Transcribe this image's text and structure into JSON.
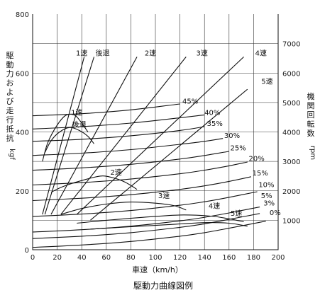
{
  "chart_data": {
    "type": "line",
    "title": "駆動力曲線図例",
    "xlabel": "車速（km/h）",
    "ylabel_left": [
      "駆",
      "動",
      "力",
      "お",
      "よ",
      "び",
      "走",
      "行",
      "抵",
      "抗"
    ],
    "ylabel_left_unit": "kgf",
    "ylabel_right": [
      "機",
      "関",
      "回",
      "転",
      "数"
    ],
    "ylabel_right_unit": "rpm",
    "xlim": [
      0,
      200
    ],
    "ylim_left": [
      0,
      800
    ],
    "ylim_right": [
      0,
      8000
    ],
    "x_ticks": [
      "0",
      "20",
      "40",
      "60",
      "80",
      "100",
      "120",
      "140",
      "160",
      "180",
      "200"
    ],
    "y_left_ticks": [
      "0",
      "200",
      "400",
      "600",
      "800"
    ],
    "y_right_ticks": [
      "1000",
      "2000",
      "3000",
      "4000",
      "5000",
      "6000",
      "7000"
    ],
    "grid": true,
    "gear_speed_lines": [
      {
        "name": "1速",
        "points": [
          [
            8,
            1200
          ],
          [
            42,
            6550
          ]
        ]
      },
      {
        "name": "後退",
        "points": [
          [
            10,
            1200
          ],
          [
            50,
            6550
          ]
        ]
      },
      {
        "name": "2速",
        "points": [
          [
            15,
            1200
          ],
          [
            85,
            6550
          ]
        ]
      },
      {
        "name": "3速",
        "points": [
          [
            23,
            1200
          ],
          [
            125,
            6550
          ]
        ]
      },
      {
        "name": "4速",
        "points": [
          [
            36,
            1200
          ],
          [
            172,
            6550
          ]
        ]
      },
      {
        "name": "5速",
        "points": [
          [
            47,
            1000
          ],
          [
            175,
            5450
          ]
        ]
      }
    ],
    "drive_force_curves": [
      {
        "name": "1速",
        "points": [
          [
            8,
            300
          ],
          [
            12,
            360
          ],
          [
            18,
            410
          ],
          [
            25,
            450
          ],
          [
            30,
            460
          ],
          [
            35,
            455
          ],
          [
            40,
            430
          ],
          [
            45,
            400
          ]
        ]
      },
      {
        "name": "後退",
        "points": [
          [
            10,
            330
          ],
          [
            15,
            370
          ],
          [
            22,
            400
          ],
          [
            30,
            415
          ],
          [
            38,
            405
          ],
          [
            45,
            385
          ],
          [
            50,
            360
          ]
        ]
      },
      {
        "name": "2速",
        "points": [
          [
            15,
            195
          ],
          [
            25,
            215
          ],
          [
            40,
            235
          ],
          [
            55,
            250
          ],
          [
            65,
            245
          ],
          [
            75,
            230
          ],
          [
            85,
            205
          ]
        ]
      },
      {
        "name": "3速",
        "points": [
          [
            23,
            120
          ],
          [
            40,
            140
          ],
          [
            60,
            155
          ],
          [
            80,
            162
          ],
          [
            100,
            158
          ],
          [
            115,
            150
          ],
          [
            125,
            135
          ]
        ]
      },
      {
        "name": "4速",
        "points": [
          [
            36,
            90
          ],
          [
            60,
            100
          ],
          [
            90,
            110
          ],
          [
            120,
            118
          ],
          [
            145,
            114
          ],
          [
            160,
            105
          ],
          [
            172,
            95
          ]
        ]
      },
      {
        "name": "5速",
        "points": [
          [
            47,
            70
          ],
          [
            80,
            78
          ],
          [
            110,
            85
          ],
          [
            140,
            92
          ],
          [
            160,
            90
          ],
          [
            175,
            80
          ]
        ]
      }
    ],
    "resistance_curves": [
      {
        "name": "45%",
        "points": [
          [
            0,
            455
          ],
          [
            40,
            462
          ],
          [
            80,
            475
          ],
          [
            120,
            495
          ]
        ]
      },
      {
        "name": "40%",
        "points": [
          [
            0,
            410
          ],
          [
            40,
            418
          ],
          [
            80,
            430
          ],
          [
            120,
            448
          ],
          [
            140,
            458
          ]
        ]
      },
      {
        "name": "35%",
        "points": [
          [
            0,
            368
          ],
          [
            40,
            375
          ],
          [
            80,
            387
          ],
          [
            120,
            405
          ],
          [
            140,
            418
          ]
        ]
      },
      {
        "name": "30%",
        "points": [
          [
            0,
            320
          ],
          [
            40,
            328
          ],
          [
            80,
            340
          ],
          [
            120,
            358
          ],
          [
            140,
            368
          ],
          [
            155,
            378
          ]
        ]
      },
      {
        "name": "25%",
        "points": [
          [
            0,
            270
          ],
          [
            40,
            278
          ],
          [
            80,
            290
          ],
          [
            120,
            308
          ],
          [
            140,
            320
          ],
          [
            160,
            334
          ]
        ]
      },
      {
        "name": "20%",
        "points": [
          [
            0,
            220
          ],
          [
            40,
            228
          ],
          [
            80,
            240
          ],
          [
            120,
            258
          ],
          [
            140,
            270
          ],
          [
            160,
            285
          ],
          [
            175,
            298
          ]
        ]
      },
      {
        "name": "15%",
        "points": [
          [
            0,
            167
          ],
          [
            40,
            175
          ],
          [
            80,
            187
          ],
          [
            120,
            205
          ],
          [
            140,
            217
          ],
          [
            160,
            232
          ],
          [
            178,
            248
          ]
        ]
      },
      {
        "name": "10%",
        "points": [
          [
            0,
            113
          ],
          [
            40,
            121
          ],
          [
            80,
            133
          ],
          [
            120,
            151
          ],
          [
            140,
            163
          ],
          [
            160,
            178
          ],
          [
            183,
            197
          ]
        ]
      },
      {
        "name": "5%",
        "points": [
          [
            0,
            60
          ],
          [
            40,
            68
          ],
          [
            80,
            80
          ],
          [
            120,
            98
          ],
          [
            140,
            110
          ],
          [
            160,
            125
          ],
          [
            185,
            145
          ]
        ]
      },
      {
        "name": "3%",
        "points": [
          [
            0,
            38
          ],
          [
            40,
            46
          ],
          [
            80,
            58
          ],
          [
            120,
            76
          ],
          [
            140,
            88
          ],
          [
            160,
            103
          ],
          [
            185,
            123
          ]
        ]
      },
      {
        "name": "0%",
        "points": [
          [
            0,
            8
          ],
          [
            40,
            16
          ],
          [
            80,
            28
          ],
          [
            120,
            46
          ],
          [
            140,
            58
          ],
          [
            160,
            73
          ],
          [
            190,
            97
          ]
        ]
      }
    ]
  },
  "labels": {
    "gear_top": [
      {
        "text": "1速",
        "x": 40,
        "y": 660
      },
      {
        "text": "後退",
        "x": 57,
        "y": 660
      },
      {
        "text": "2速",
        "x": 96,
        "y": 660
      },
      {
        "text": "3速",
        "x": 138,
        "y": 660
      },
      {
        "text": "4速",
        "x": 186,
        "y": 660
      },
      {
        "text": "5速",
        "x": 191,
        "y": 563
      }
    ],
    "gear_mid": [
      {
        "text": "1速",
        "x": 36,
        "y": 458
      },
      {
        "text": "後退",
        "x": 38,
        "y": 417
      },
      {
        "text": "2速",
        "x": 68,
        "y": 255
      },
      {
        "text": "3速",
        "x": 107,
        "y": 175
      },
      {
        "text": "4速",
        "x": 148,
        "y": 140
      },
      {
        "text": "5速",
        "x": 166,
        "y": 115
      }
    ],
    "grade": [
      {
        "text": "45%",
        "x": 122,
        "y": 496
      },
      {
        "text": "40%",
        "x": 140,
        "y": 458
      },
      {
        "text": "35%",
        "x": 142,
        "y": 420
      },
      {
        "text": "30%",
        "x": 156,
        "y": 380
      },
      {
        "text": "25%",
        "x": 161,
        "y": 338
      },
      {
        "text": "20%",
        "x": 176,
        "y": 302
      },
      {
        "text": "15%",
        "x": 179,
        "y": 252
      },
      {
        "text": "10%",
        "x": 184,
        "y": 213
      },
      {
        "text": "5%",
        "x": 186,
        "y": 175
      },
      {
        "text": "3%",
        "x": 188,
        "y": 150
      },
      {
        "text": "0%",
        "x": 193,
        "y": 118
      }
    ]
  }
}
